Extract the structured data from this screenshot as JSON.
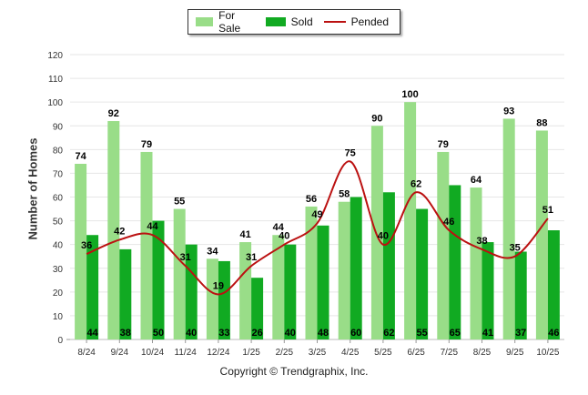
{
  "chart_data": {
    "type": "bar",
    "title": "",
    "xlabel": "",
    "ylabel": "Number of Homes",
    "ylim": [
      0,
      120
    ],
    "yticks": [
      0,
      10,
      20,
      30,
      40,
      50,
      60,
      70,
      80,
      90,
      100,
      110,
      120
    ],
    "categories": [
      "8/24",
      "9/24",
      "10/24",
      "11/24",
      "12/24",
      "1/25",
      "2/25",
      "3/25",
      "4/25",
      "5/25",
      "6/25",
      "7/25",
      "8/25",
      "9/25",
      "10/25"
    ],
    "series": [
      {
        "name": "For Sale",
        "kind": "bar",
        "color": "#99dd88",
        "values": [
          74,
          92,
          79,
          55,
          34,
          41,
          44,
          56,
          58,
          90,
          100,
          79,
          64,
          93,
          88
        ]
      },
      {
        "name": "Sold",
        "kind": "bar",
        "color": "#11aa22",
        "values": [
          44,
          38,
          50,
          40,
          33,
          26,
          40,
          48,
          60,
          62,
          55,
          65,
          41,
          37,
          46
        ]
      },
      {
        "name": "Pended",
        "kind": "line",
        "color": "#bb1111",
        "values": [
          36,
          42,
          44,
          31,
          19,
          31,
          40,
          49,
          75,
          40,
          62,
          46,
          38,
          35,
          51
        ]
      }
    ],
    "legend": [
      "For Sale",
      "Sold",
      "Pended"
    ],
    "legend_position": "top-center",
    "grid": true
  },
  "footer": {
    "copyright": "Copyright © Trendgraphix, Inc."
  }
}
